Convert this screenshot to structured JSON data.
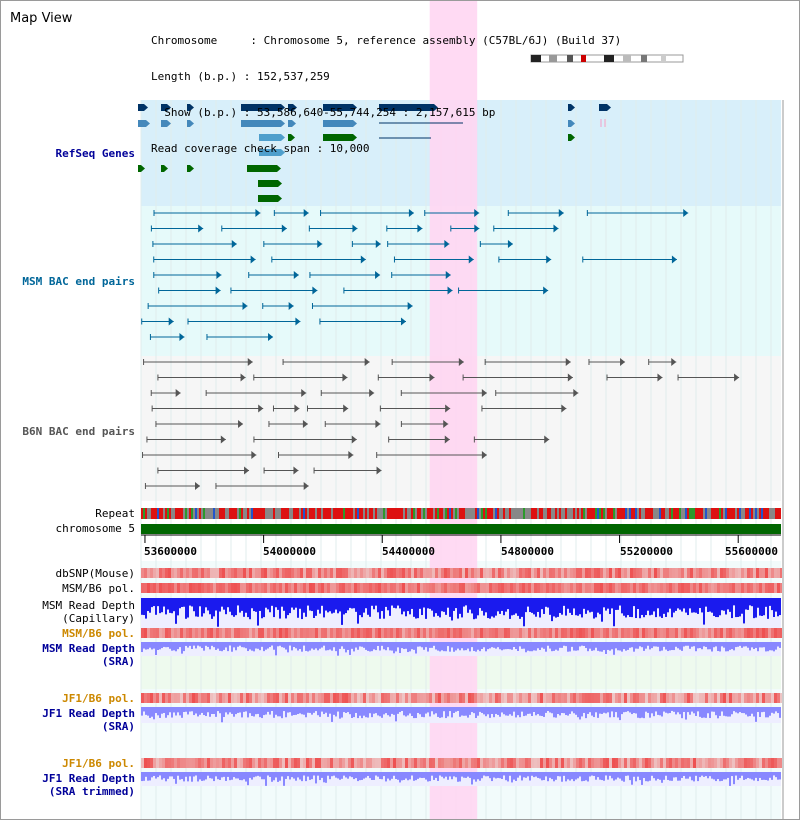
{
  "header": {
    "title": "Map View",
    "info_lines": [
      "Chromosome     : Chromosome 5, reference assembly (C57BL/6J) (Build 37)",
      "Length (b.p.) : 152,537,259",
      "  Show (b.p.) : 53,586,640-55,744,254 : 2,157,615 bp",
      "Read coverage check span : 10,000"
    ]
  },
  "tracks": {
    "refseq": {
      "label": "RefSeq Genes",
      "color": "#000099"
    },
    "msm_bac": {
      "label": "MSM BAC end pairs",
      "color": "#006699"
    },
    "b6n_bac": {
      "label": "B6N BAC end pairs",
      "color": "#555555"
    },
    "repeat": {
      "label": "Repeat"
    },
    "chromosome": {
      "label": "chromosome 5",
      "color": "#006600"
    },
    "dbsnp": {
      "label": "dbSNP(Mouse)"
    },
    "msm_b6_pol": {
      "label": "MSM/B6 pol."
    },
    "msm_read_depth_cap": {
      "label_1": "MSM Read Depth",
      "label_2": "(Capillary)"
    },
    "msm_b6_pol_sra": {
      "label": "MSM/B6 pol.",
      "color": "#cc8800"
    },
    "msm_read_depth_sra": {
      "label_1": "MSM Read Depth",
      "label_2": "(SRA)",
      "color": "#000099"
    },
    "jf1_b6_pol_1": {
      "label": "JF1/B6 pol.",
      "color": "#cc8800"
    },
    "jf1_read_depth_sra": {
      "label_1": "JF1 Read Depth",
      "label_2": "(SRA)",
      "color": "#000099"
    },
    "jf1_b6_pol_2": {
      "label": "JF1/B6 pol.",
      "color": "#cc8800"
    },
    "jf1_read_depth_trim": {
      "label_1": "JF1 Read Depth",
      "label_2": "(SRA trimmed)",
      "color": "#000099"
    }
  },
  "axis": {
    "ticks": [
      "53600000",
      "54000000",
      "54400000",
      "54800000",
      "55200000",
      "55600000"
    ],
    "tick_values": [
      53600000,
      54000000,
      54400000,
      54800000,
      55200000,
      55600000
    ],
    "range": [
      53586640,
      55744254
    ]
  },
  "highlight": {
    "start": 54560000,
    "end": 54720000,
    "color": "#ffd6f2"
  },
  "colors": {
    "gene_dark": "#003366",
    "gene_mid": "#4488bb",
    "gene_light": "#4f9fcc",
    "gene_green": "#006600",
    "refseq_bg": "#d8effa",
    "bac_bg": "#e6fafa",
    "depth_blue": "#1a1aee",
    "depth_light": "#8888ff",
    "pol_red": "#ee3333"
  }
}
